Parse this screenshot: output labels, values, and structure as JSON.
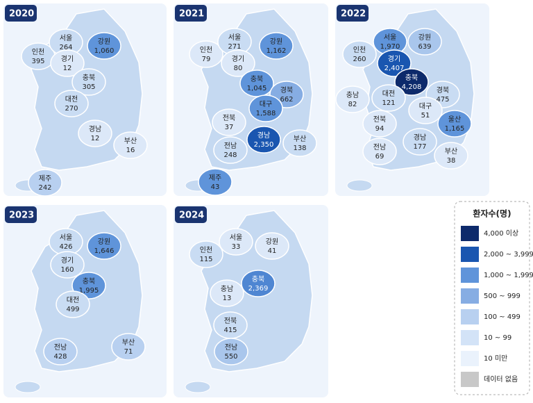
{
  "panels": [
    {
      "year": "2020",
      "regions": [
        {
          "name": "인천",
          "value": "395",
          "color": "#c9dcf3"
        },
        {
          "name": "서울",
          "value": "264",
          "color": "#c9dcf3"
        },
        {
          "name": "경기",
          "value": "12",
          "color": "#dce8f8"
        },
        {
          "name": "강원",
          "value": "1,060",
          "color": "#5f94da"
        },
        {
          "name": "충북",
          "value": "305",
          "color": "#c9dcf3"
        },
        {
          "name": "대전",
          "value": "270",
          "color": "#c9dcf3"
        },
        {
          "name": "경남",
          "value": "12",
          "color": "#dce8f8"
        },
        {
          "name": "부산",
          "value": "16",
          "color": "#dce8f8"
        },
        {
          "name": "제주",
          "value": "242",
          "color": "#b8d0f0"
        }
      ]
    },
    {
      "year": "2021",
      "regions": [
        {
          "name": "인천",
          "value": "79",
          "color": "#dce8f8"
        },
        {
          "name": "서울",
          "value": "271",
          "color": "#c9dcf3"
        },
        {
          "name": "경기",
          "value": "80",
          "color": "#dce8f8"
        },
        {
          "name": "강원",
          "value": "1,162",
          "color": "#5f94da"
        },
        {
          "name": "충북",
          "value": "1,045",
          "color": "#5f94da"
        },
        {
          "name": "경북",
          "value": "662",
          "color": "#86ade3"
        },
        {
          "name": "대구",
          "value": "1,588",
          "color": "#5f94da"
        },
        {
          "name": "전북",
          "value": "37",
          "color": "#dce8f8"
        },
        {
          "name": "경남",
          "value": "2,350",
          "color": "#1a56b0"
        },
        {
          "name": "전남",
          "value": "248",
          "color": "#c9dcf3"
        },
        {
          "name": "부산",
          "value": "138",
          "color": "#c9dcf3"
        },
        {
          "name": "제주",
          "value": "43",
          "color": "#5f94da"
        }
      ]
    },
    {
      "year": "2022",
      "regions": [
        {
          "name": "인천",
          "value": "260",
          "color": "#c9dcf3"
        },
        {
          "name": "서울",
          "value": "1,970",
          "color": "#5f94da"
        },
        {
          "name": "강원",
          "value": "639",
          "color": "#a9c6ec"
        },
        {
          "name": "경기",
          "value": "2,407",
          "color": "#1a56b0"
        },
        {
          "name": "충북",
          "value": "4,208",
          "color": "#0d2a6b"
        },
        {
          "name": "충남",
          "value": "82",
          "color": "#dce8f8"
        },
        {
          "name": "대전",
          "value": "121",
          "color": "#c9dcf3"
        },
        {
          "name": "경북",
          "value": "475",
          "color": "#c9dcf3"
        },
        {
          "name": "대구",
          "value": "51",
          "color": "#dce8f8"
        },
        {
          "name": "전북",
          "value": "94",
          "color": "#dce8f8"
        },
        {
          "name": "울산",
          "value": "1,165",
          "color": "#5f94da"
        },
        {
          "name": "경남",
          "value": "177",
          "color": "#c9dcf3"
        },
        {
          "name": "전남",
          "value": "69",
          "color": "#dce8f8"
        },
        {
          "name": "부산",
          "value": "38",
          "color": "#dce8f8"
        }
      ]
    },
    {
      "year": "2023",
      "regions": [
        {
          "name": "서울",
          "value": "426",
          "color": "#c9dcf3"
        },
        {
          "name": "강원",
          "value": "1,646",
          "color": "#5f94da"
        },
        {
          "name": "경기",
          "value": "160",
          "color": "#c9dcf3"
        },
        {
          "name": "충북",
          "value": "1,995",
          "color": "#5f94da"
        },
        {
          "name": "대전",
          "value": "499",
          "color": "#c9dcf3"
        },
        {
          "name": "전남",
          "value": "428",
          "color": "#b8d0f0"
        },
        {
          "name": "부산",
          "value": "71",
          "color": "#b8d0f0"
        }
      ]
    },
    {
      "year": "2024",
      "regions": [
        {
          "name": "인천",
          "value": "115",
          "color": "#c9dcf3"
        },
        {
          "name": "서울",
          "value": "33",
          "color": "#dce8f8"
        },
        {
          "name": "강원",
          "value": "41",
          "color": "#dce8f8"
        },
        {
          "name": "충북",
          "value": "2,369",
          "color": "#4f86d2"
        },
        {
          "name": "충남",
          "value": "13",
          "color": "#dce8f8"
        },
        {
          "name": "전북",
          "value": "415",
          "color": "#c9dcf3"
        },
        {
          "name": "전남",
          "value": "550",
          "color": "#a9c6ec"
        }
      ]
    }
  ],
  "legend": {
    "title": "환자수(명)",
    "items": [
      {
        "label": "4,000 이상",
        "color": "#0d2a6b"
      },
      {
        "label": "2,000 ~ 3,999",
        "color": "#1a56b0"
      },
      {
        "label": "1,000 ~ 1,999",
        "color": "#5f94da"
      },
      {
        "label": "500 ~ 999",
        "color": "#86ade3"
      },
      {
        "label": "100 ~ 499",
        "color": "#b8d0f0"
      },
      {
        "label": "10 ~ 99",
        "color": "#d3e3f7"
      },
      {
        "label": "10 미만",
        "color": "#eaf2fc"
      },
      {
        "label": "데이터 없음",
        "color": "#c8c8c8"
      }
    ]
  }
}
